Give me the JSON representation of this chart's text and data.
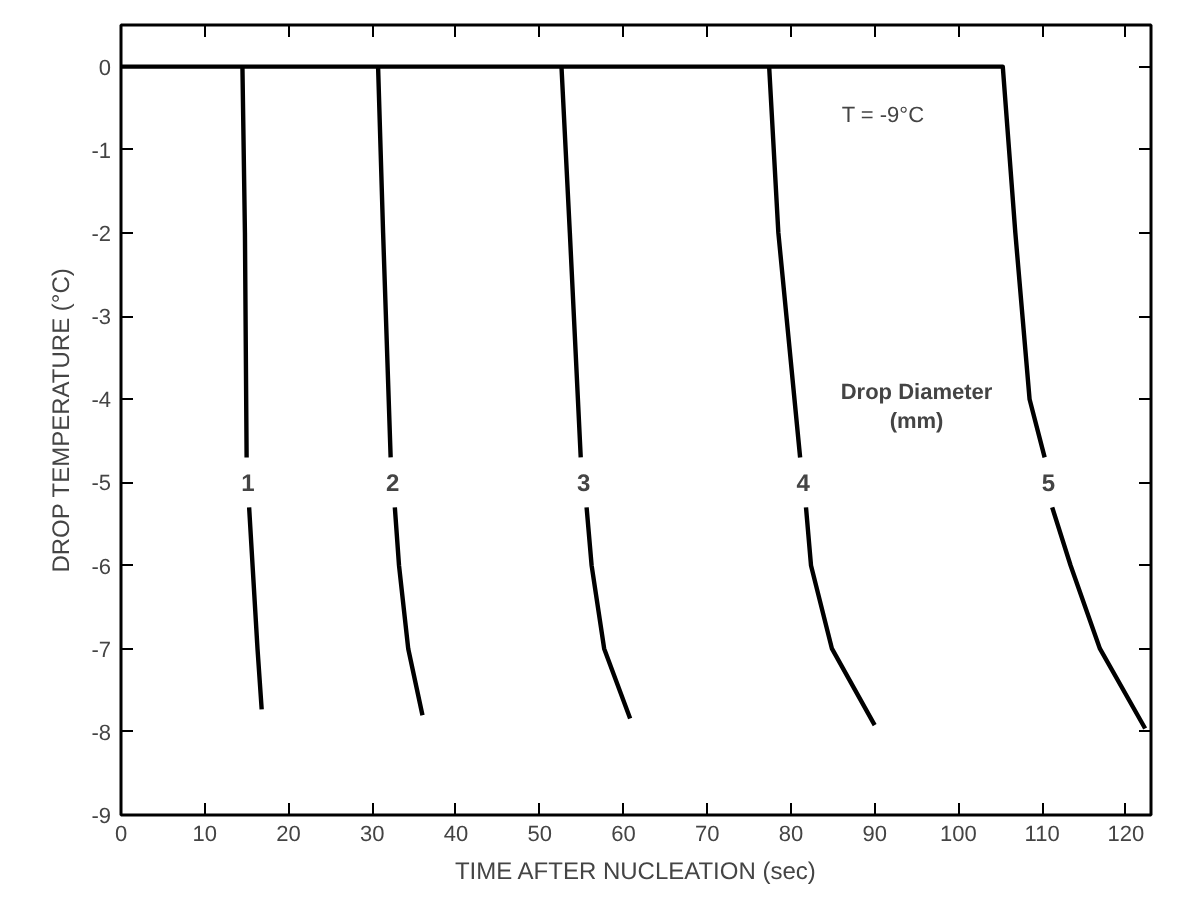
{
  "chart_data": {
    "type": "line",
    "xlabel": "TIME AFTER NUCLEATION (sec)",
    "ylabel": "DROP TEMPERATURE (°C)",
    "xlim": [
      0,
      123
    ],
    "ylim": [
      -9,
      0.5
    ],
    "xticks": [
      0,
      10,
      20,
      30,
      40,
      50,
      60,
      70,
      80,
      90,
      100,
      110,
      120
    ],
    "yticks": [
      0,
      -1,
      -2,
      -3,
      -4,
      -5,
      -6,
      -7,
      -8,
      -9
    ],
    "grid": false,
    "line_style": "solid",
    "marker": "none",
    "annotations": [
      "T = -9°C",
      "Drop Diameter\n(mm)"
    ],
    "series": [
      {
        "name": "1",
        "color": "#000000",
        "x": [
          14.5,
          14.8,
          15.0,
          null,
          15.3,
          16.3,
          16.8
        ],
        "values": [
          0,
          -2,
          -4.7,
          null,
          -5.3,
          -7,
          -7.73
        ]
      },
      {
        "name": "2",
        "color": "#000000",
        "x": [
          30.7,
          31.3,
          32.2,
          null,
          32.7,
          33.2,
          34.3,
          36.0
        ],
        "values": [
          0,
          -2,
          -4.7,
          null,
          -5.3,
          -6,
          -7,
          -7.8
        ]
      },
      {
        "name": "3",
        "color": "#000000",
        "x": [
          52.6,
          53.6,
          54.9,
          null,
          55.6,
          56.2,
          57.7,
          60.8
        ],
        "values": [
          0,
          -2,
          -4.7,
          null,
          -5.3,
          -6,
          -7,
          -7.84
        ]
      },
      {
        "name": "4",
        "color": "#000000",
        "x": [
          77.4,
          78.5,
          81.1,
          null,
          81.8,
          82.4,
          84.9,
          90.0
        ],
        "values": [
          0,
          -2,
          -4.7,
          null,
          -5.3,
          -6,
          -7,
          -7.92
        ]
      },
      {
        "name": "5",
        "color": "#000000",
        "x": [
          0,
          105.3,
          106.8,
          108.5,
          110.3,
          null,
          111.2,
          113.4,
          116.9,
          122.3
        ],
        "values": [
          0,
          0,
          -2,
          -4,
          -4.7,
          null,
          -5.3,
          -6,
          -7,
          -7.96
        ]
      }
    ]
  }
}
